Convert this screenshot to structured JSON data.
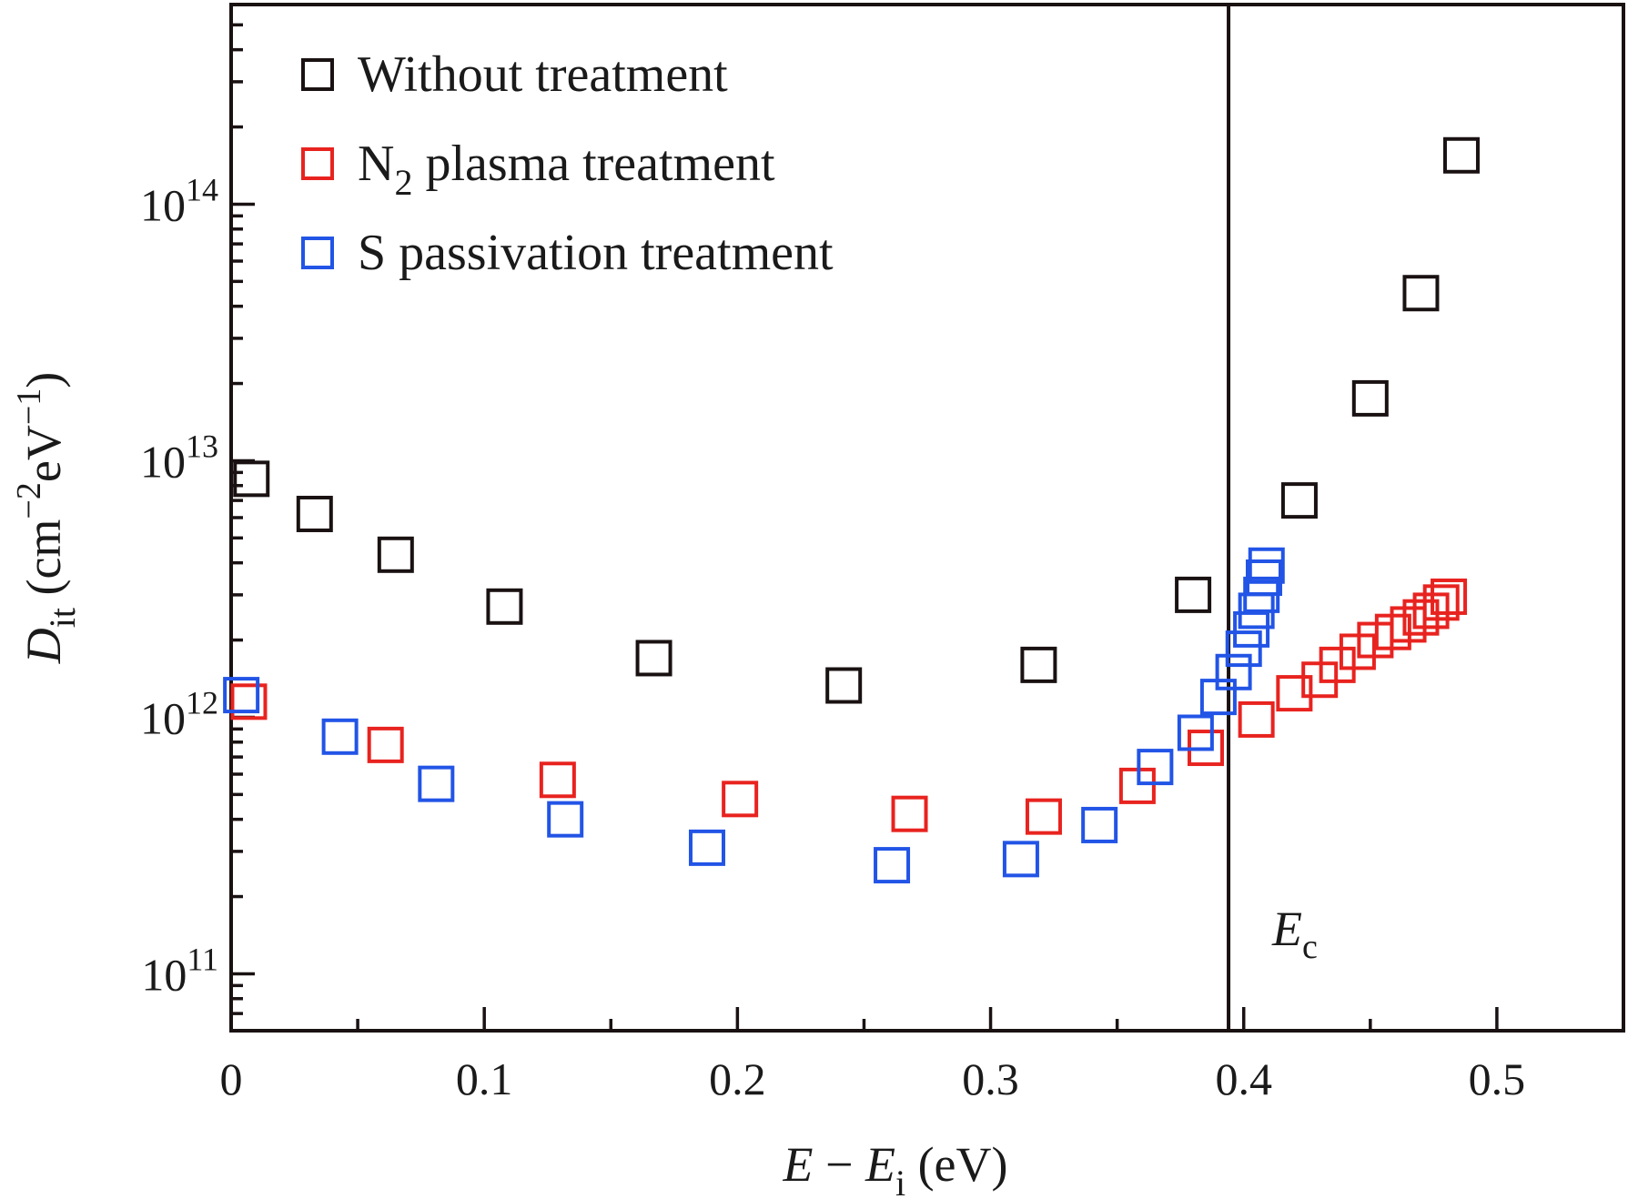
{
  "chart_data": {
    "type": "scatter",
    "xlabel": {
      "main": "E",
      "minus": " − ",
      "var": "E",
      "sub": "i",
      "unit": " (eV)"
    },
    "ylabel": {
      "var": "D",
      "sub": "it",
      "unit_open": " (cm",
      "exp1": "−2",
      "mid": "eV",
      "exp2": "−1",
      "unit_close": ")"
    },
    "x_axis": {
      "min": 0,
      "max": 0.55,
      "ticks": [
        0,
        0.1,
        0.2,
        0.3,
        0.4,
        0.5
      ],
      "tick_labels": [
        "0",
        "0.1",
        "0.2",
        "0.3",
        "0.4",
        "0.5"
      ]
    },
    "y_axis": {
      "scale": "log",
      "min": 60000000000.0,
      "max": 600000000000000.0,
      "ticks": [
        100000000000.0,
        1000000000000.0,
        10000000000000.0,
        100000000000000.0
      ],
      "tick_labels": [
        {
          "base": "10",
          "exp": "11"
        },
        {
          "base": "10",
          "exp": "12"
        },
        {
          "base": "10",
          "exp": "13"
        },
        {
          "base": "10",
          "exp": "14"
        }
      ]
    },
    "grid": false,
    "legend_position": "top-left",
    "series": [
      {
        "name": "Without treatment",
        "name_parts": {
          "base": "Without treatment"
        },
        "color": "#1a1212",
        "points": [
          [
            0.008,
            8500000000000.0
          ],
          [
            0.033,
            6200000000000.0
          ],
          [
            0.065,
            4300000000000.0
          ],
          [
            0.108,
            2700000000000.0
          ],
          [
            0.167,
            1700000000000.0
          ],
          [
            0.242,
            1330000000000.0
          ],
          [
            0.319,
            1600000000000.0
          ],
          [
            0.38,
            3000000000000.0
          ],
          [
            0.422,
            7000000000000.0
          ],
          [
            0.45,
            17500000000000.0
          ],
          [
            0.47,
            45000000000000.0
          ],
          [
            0.486,
            155000000000000.0
          ]
        ]
      },
      {
        "name": "N2 plasma treatment",
        "name_parts": {
          "base": "N",
          "sub": "2",
          "rest": " plasma treatment"
        },
        "color": "#e8231f",
        "points": [
          [
            0.007,
            1150000000000.0
          ],
          [
            0.061,
            780000000000.0
          ],
          [
            0.129,
            570000000000.0
          ],
          [
            0.201,
            480000000000.0
          ],
          [
            0.268,
            420000000000.0
          ],
          [
            0.321,
            410000000000.0
          ],
          [
            0.358,
            540000000000.0
          ],
          [
            0.385,
            760000000000.0
          ],
          [
            0.405,
            980000000000.0
          ],
          [
            0.42,
            1240000000000.0
          ],
          [
            0.43,
            1400000000000.0
          ],
          [
            0.437,
            1600000000000.0
          ],
          [
            0.445,
            1800000000000.0
          ],
          [
            0.452,
            2000000000000.0
          ],
          [
            0.459,
            2150000000000.0
          ],
          [
            0.465,
            2300000000000.0
          ],
          [
            0.47,
            2450000000000.0
          ],
          [
            0.474,
            2600000000000.0
          ],
          [
            0.478,
            2800000000000.0
          ],
          [
            0.481,
            2950000000000.0
          ]
        ]
      },
      {
        "name": "S passivation treatment",
        "name_parts": {
          "base": "S passivation treatment"
        },
        "color": "#2254e6",
        "points": [
          [
            0.004,
            1220000000000.0
          ],
          [
            0.043,
            840000000000.0
          ],
          [
            0.081,
            550000000000.0
          ],
          [
            0.132,
            400000000000.0
          ],
          [
            0.188,
            310000000000.0
          ],
          [
            0.261,
            265000000000.0
          ],
          [
            0.312,
            280000000000.0
          ],
          [
            0.343,
            380000000000.0
          ],
          [
            0.365,
            640000000000.0
          ],
          [
            0.381,
            870000000000.0
          ],
          [
            0.39,
            1200000000000.0
          ],
          [
            0.396,
            1500000000000.0
          ],
          [
            0.4,
            1850000000000.0
          ],
          [
            0.403,
            2200000000000.0
          ],
          [
            0.405,
            2600000000000.0
          ],
          [
            0.407,
            3000000000000.0
          ],
          [
            0.408,
            3500000000000.0
          ],
          [
            0.409,
            3900000000000.0
          ]
        ]
      }
    ],
    "annotations": [
      {
        "type": "vline",
        "x": 0.394,
        "label_var": "E",
        "label_sub": "c",
        "label_y": 150000000000.0
      }
    ]
  }
}
